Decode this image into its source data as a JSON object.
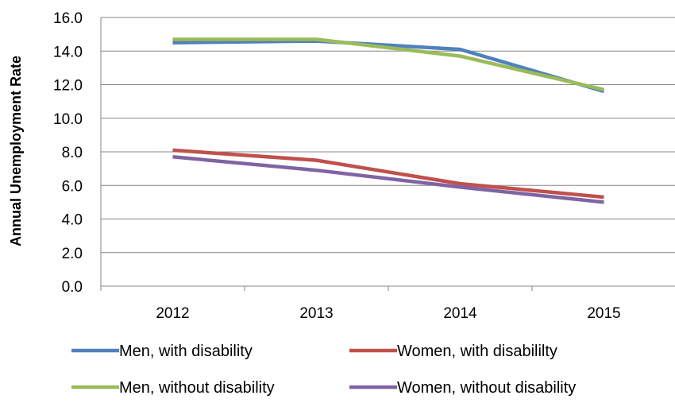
{
  "chart_data": {
    "type": "line",
    "title": "",
    "xlabel": "",
    "ylabel": "Annual Unemployment Rate",
    "categories": [
      "2012",
      "2013",
      "2014",
      "2015"
    ],
    "ylim": [
      0,
      16
    ],
    "yticks": [
      "0.0",
      "2.0",
      "4.0",
      "6.0",
      "8.0",
      "10.0",
      "12.0",
      "14.0",
      "16.0"
    ],
    "grid": "horizontal",
    "legend_position": "bottom",
    "series": [
      {
        "name": "Men, with disability",
        "color": "#4F81BD",
        "values": [
          14.5,
          14.6,
          14.1,
          11.6
        ]
      },
      {
        "name": "Women, with disabililty",
        "color": "#C0504D",
        "values": [
          8.1,
          7.5,
          6.1,
          5.3
        ]
      },
      {
        "name": "Men, without disability",
        "color": "#9BBB59",
        "values": [
          14.7,
          14.7,
          13.7,
          11.7
        ]
      },
      {
        "name": "Women, without disability",
        "color": "#8064A2",
        "values": [
          7.7,
          6.9,
          5.9,
          5.0
        ]
      }
    ]
  }
}
